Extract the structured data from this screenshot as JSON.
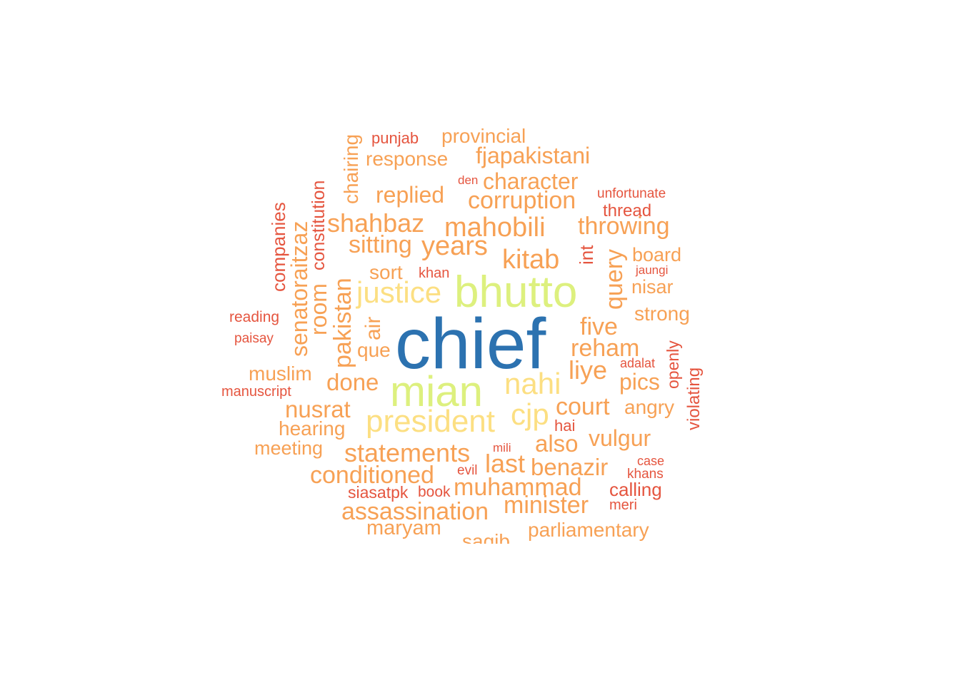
{
  "palette": {
    "blue": "#2C72B0",
    "lime": "#DDF07E",
    "yellow": "#FCDF82",
    "orange": "#F7A155",
    "red": "#E5553F"
  },
  "words": [
    {
      "text": "chief",
      "color": "blue",
      "rot": 0
    },
    {
      "text": "bhutto",
      "color": "lime",
      "rot": 0
    },
    {
      "text": "mian",
      "color": "lime",
      "rot": 0
    },
    {
      "text": "president",
      "color": "yellow",
      "rot": 0
    },
    {
      "text": "justice",
      "color": "yellow",
      "rot": 0
    },
    {
      "text": "nahi",
      "color": "yellow",
      "rot": 0
    },
    {
      "text": "cjp",
      "color": "yellow",
      "rot": 0
    },
    {
      "text": "mahobili",
      "color": "orange",
      "rot": 0
    },
    {
      "text": "years",
      "color": "orange",
      "rot": 0
    },
    {
      "text": "kitab",
      "color": "orange",
      "rot": 0
    },
    {
      "text": "shahbaz",
      "color": "orange",
      "rot": 0
    },
    {
      "text": "corruption",
      "color": "orange",
      "rot": 0
    },
    {
      "text": "character",
      "color": "orange",
      "rot": 0
    },
    {
      "text": "replied",
      "color": "orange",
      "rot": 0
    },
    {
      "text": "fjapakistani",
      "color": "orange",
      "rot": 0
    },
    {
      "text": "response",
      "color": "orange",
      "rot": 0
    },
    {
      "text": "provincial",
      "color": "orange",
      "rot": 0
    },
    {
      "text": "punjab",
      "color": "red",
      "rot": 0
    },
    {
      "text": "chairing",
      "color": "orange",
      "rot": -90
    },
    {
      "text": "den",
      "color": "red",
      "rot": 0
    },
    {
      "text": "unfortunate",
      "color": "red",
      "rot": 0
    },
    {
      "text": "thread",
      "color": "red",
      "rot": 0
    },
    {
      "text": "throwing",
      "color": "orange",
      "rot": 0
    },
    {
      "text": "sitting",
      "color": "orange",
      "rot": 0
    },
    {
      "text": "int",
      "color": "red",
      "rot": -90
    },
    {
      "text": "board",
      "color": "orange",
      "rot": 0
    },
    {
      "text": "query",
      "color": "orange",
      "rot": -90
    },
    {
      "text": "jaungi",
      "color": "red",
      "rot": 0
    },
    {
      "text": "nisar",
      "color": "orange",
      "rot": 0
    },
    {
      "text": "sort",
      "color": "orange",
      "rot": 0
    },
    {
      "text": "khan",
      "color": "red",
      "rot": 0
    },
    {
      "text": "companies",
      "color": "red",
      "rot": -90
    },
    {
      "text": "senatoraitzaz",
      "color": "orange",
      "rot": -90
    },
    {
      "text": "constitution",
      "color": "red",
      "rot": -90
    },
    {
      "text": "room",
      "color": "orange",
      "rot": -90
    },
    {
      "text": "pakistan",
      "color": "orange",
      "rot": -90
    },
    {
      "text": "air",
      "color": "orange",
      "rot": -90
    },
    {
      "text": "strong",
      "color": "orange",
      "rot": 0
    },
    {
      "text": "reading",
      "color": "red",
      "rot": 0
    },
    {
      "text": "paisay",
      "color": "red",
      "rot": 0
    },
    {
      "text": "five",
      "color": "orange",
      "rot": 0
    },
    {
      "text": "reham",
      "color": "orange",
      "rot": 0
    },
    {
      "text": "que",
      "color": "orange",
      "rot": 0
    },
    {
      "text": "openly",
      "color": "red",
      "rot": -90
    },
    {
      "text": "adalat",
      "color": "red",
      "rot": 0
    },
    {
      "text": "liye",
      "color": "orange",
      "rot": 0
    },
    {
      "text": "violating",
      "color": "red",
      "rot": -90
    },
    {
      "text": "muslim",
      "color": "orange",
      "rot": 0
    },
    {
      "text": "manuscript",
      "color": "red",
      "rot": 0
    },
    {
      "text": "done",
      "color": "orange",
      "rot": 0
    },
    {
      "text": "pics",
      "color": "orange",
      "rot": 0
    },
    {
      "text": "nusrat",
      "color": "orange",
      "rot": 0
    },
    {
      "text": "court",
      "color": "orange",
      "rot": 0
    },
    {
      "text": "angry",
      "color": "orange",
      "rot": 0
    },
    {
      "text": "hearing",
      "color": "orange",
      "rot": 0
    },
    {
      "text": "hai",
      "color": "red",
      "rot": 0
    },
    {
      "text": "vulgur",
      "color": "orange",
      "rot": 0
    },
    {
      "text": "also",
      "color": "orange",
      "rot": 0
    },
    {
      "text": "meeting",
      "color": "orange",
      "rot": 0
    },
    {
      "text": "statements",
      "color": "orange",
      "rot": 0
    },
    {
      "text": "mili",
      "color": "red",
      "rot": 0
    },
    {
      "text": "last",
      "color": "orange",
      "rot": 0
    },
    {
      "text": "benazir",
      "color": "orange",
      "rot": 0
    },
    {
      "text": "case",
      "color": "red",
      "rot": 0
    },
    {
      "text": "khans",
      "color": "red",
      "rot": 0
    },
    {
      "text": "conditioned",
      "color": "orange",
      "rot": 0
    },
    {
      "text": "evil",
      "color": "red",
      "rot": 0
    },
    {
      "text": "siasatpk",
      "color": "red",
      "rot": 0
    },
    {
      "text": "book",
      "color": "red",
      "rot": 0
    },
    {
      "text": "muhammad",
      "color": "orange",
      "rot": 0
    },
    {
      "text": "calling",
      "color": "red",
      "rot": 0
    },
    {
      "text": "assassination",
      "color": "orange",
      "rot": 0
    },
    {
      "text": "minister",
      "color": "orange",
      "rot": 0
    },
    {
      "text": "meri",
      "color": "red",
      "rot": 0
    },
    {
      "text": "maryam",
      "color": "orange",
      "rot": 0
    },
    {
      "text": "parliamentary",
      "color": "orange",
      "rot": 0
    },
    {
      "text": "saqib",
      "color": "orange",
      "rot": 0
    }
  ]
}
